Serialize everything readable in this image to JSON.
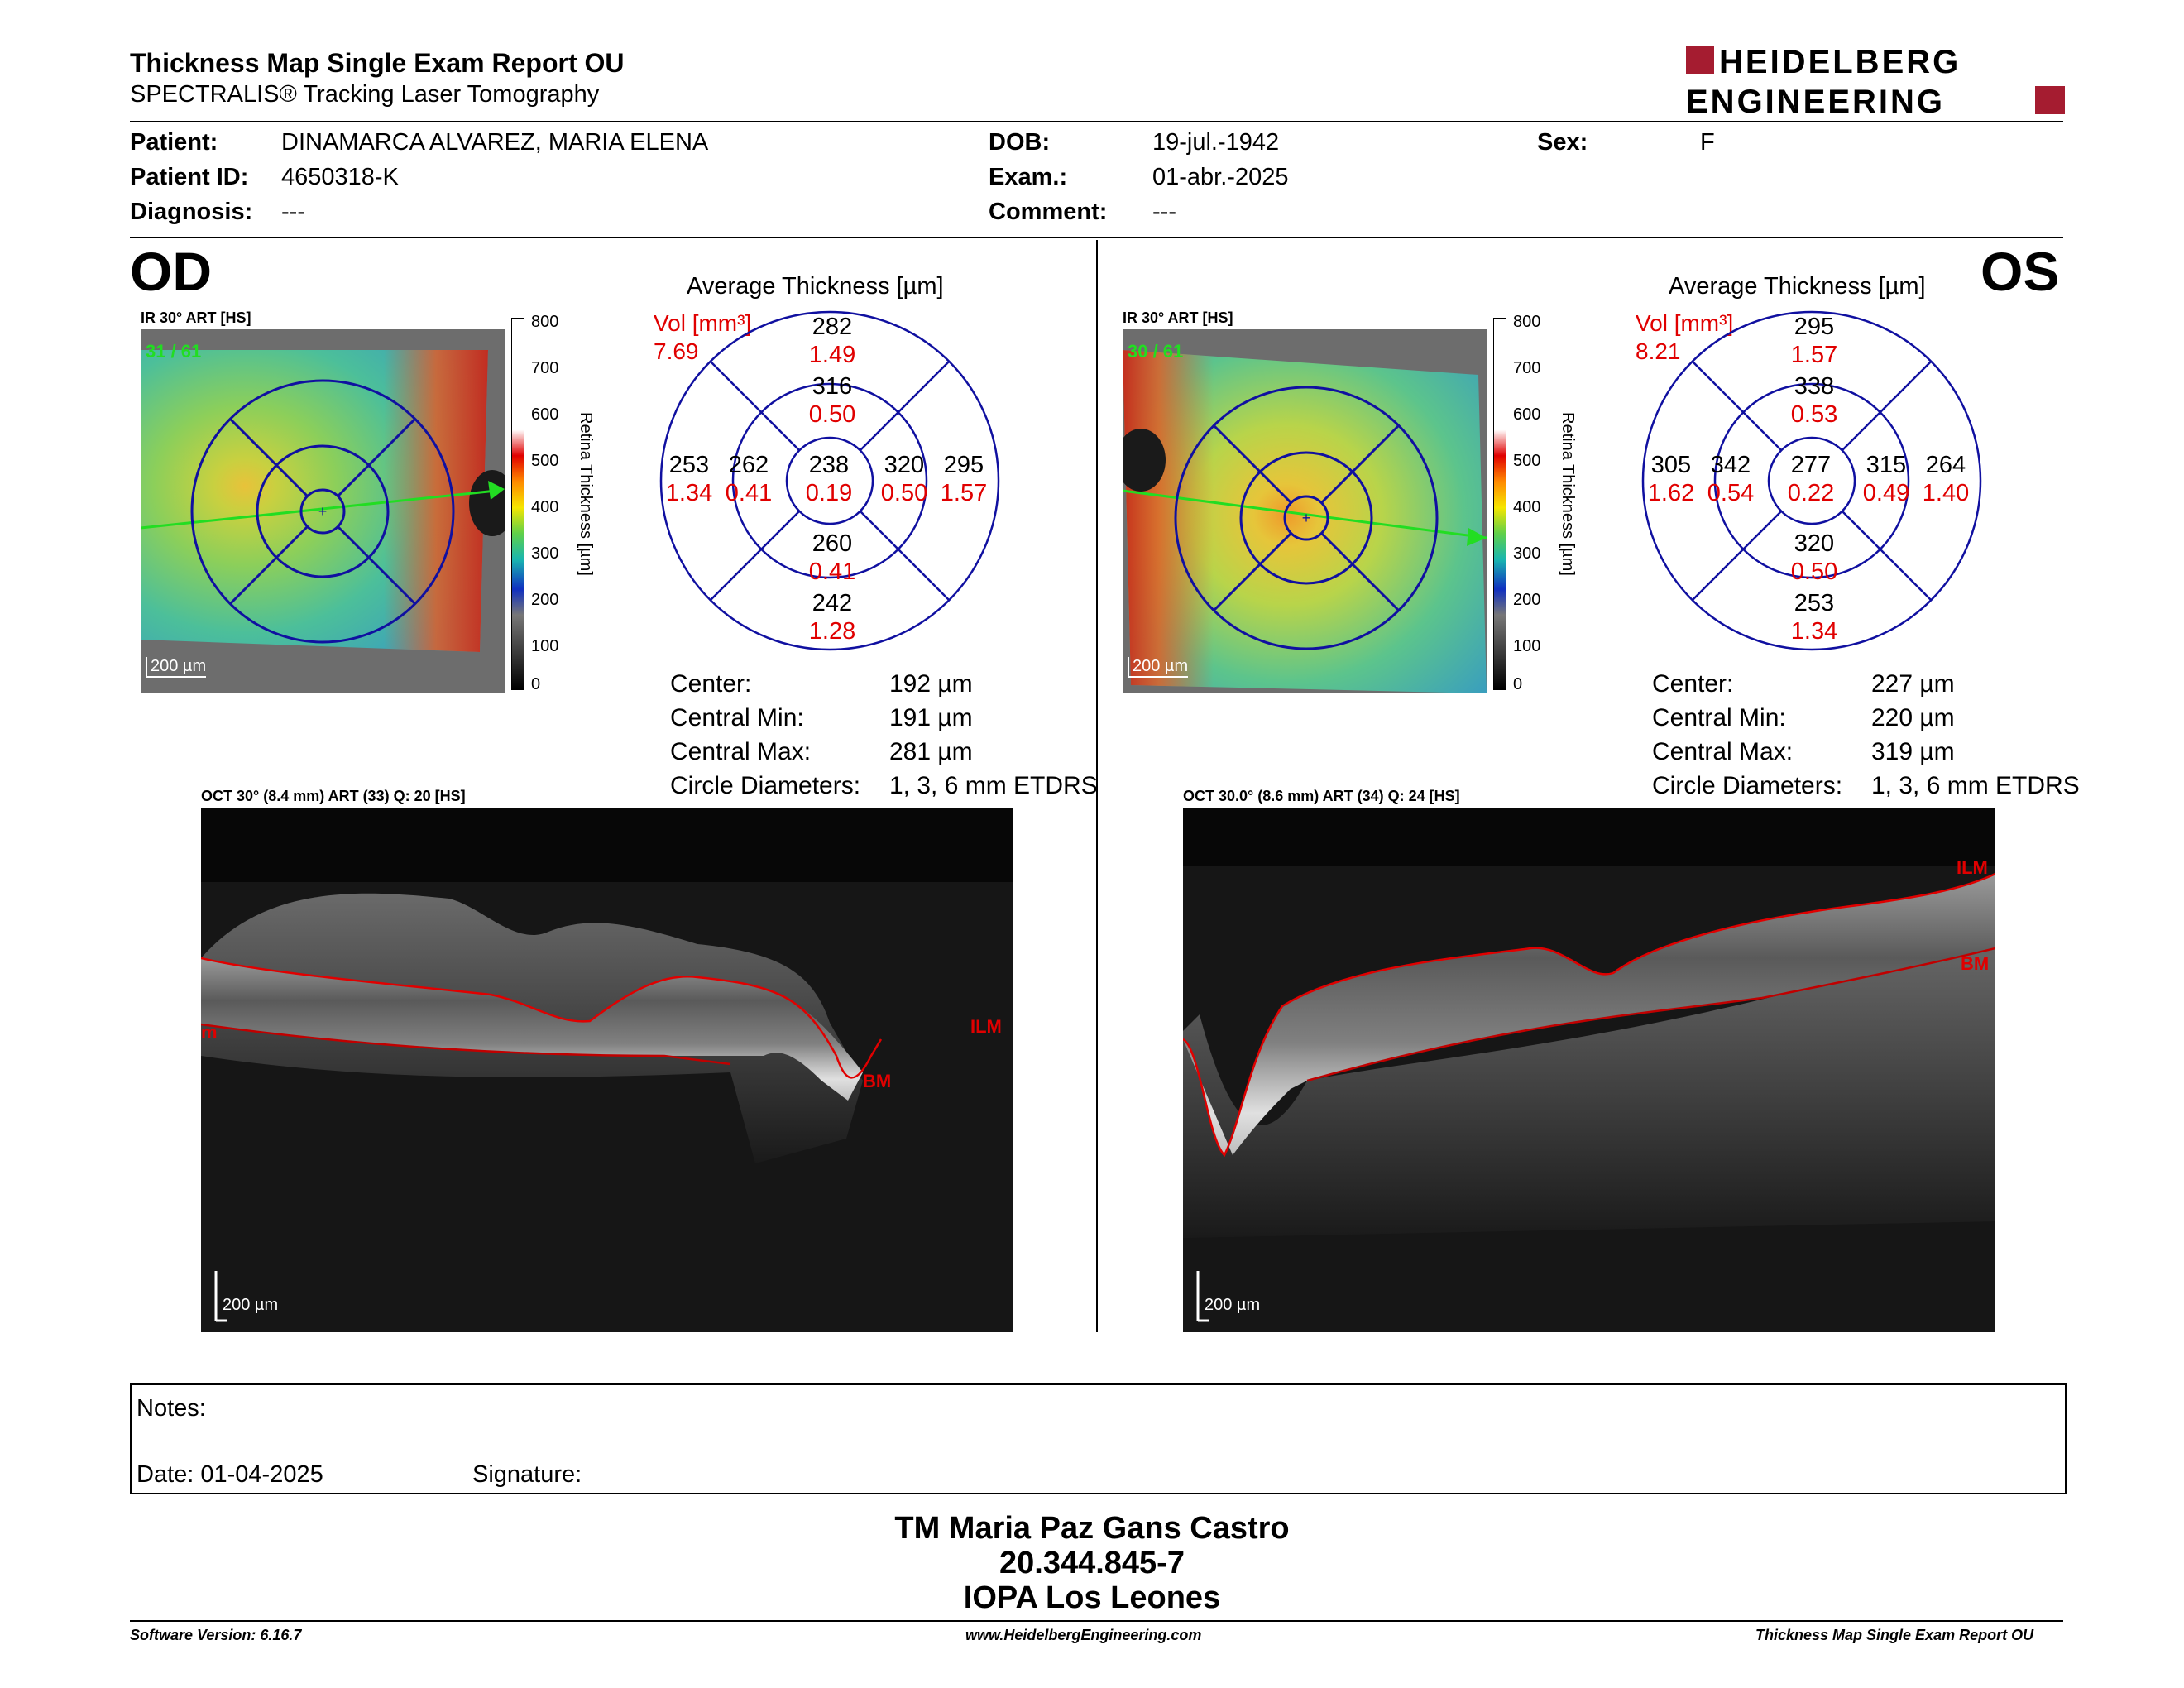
{
  "header": {
    "title": "Thickness Map Single Exam Report OU",
    "subtitle": "SPECTRALIS® Tracking Laser Tomography",
    "logo_line1": "HEIDELBERG",
    "logo_line2": "ENGINEERING",
    "logo_color": "#a51c30"
  },
  "patient": {
    "patient_label": "Patient:",
    "patient_value": "DINAMARCA ALVAREZ, MARIA ELENA",
    "id_label": "Patient ID:",
    "id_value": "4650318-K",
    "diag_label": "Diagnosis:",
    "diag_value": "---",
    "dob_label": "DOB:",
    "dob_value": "19-jul.-1942",
    "exam_label": "Exam.:",
    "exam_value": "01-abr.-2025",
    "comment_label": "Comment:",
    "comment_value": "---",
    "sex_label": "Sex:",
    "sex_value": "F"
  },
  "od": {
    "eye": "OD",
    "ir_label": "IR 30° ART [HS]",
    "frames": "31 / 61",
    "scale": "200 µm",
    "avg_title": "Average Thickness [µm]",
    "vol_label": "Vol [mm³]",
    "vol_total": "7.69",
    "sectors": {
      "outer_sup": {
        "t": "282",
        "v": "1.49"
      },
      "inner_sup": {
        "t": "316",
        "v": "0.50"
      },
      "outer_temp": {
        "t": "253",
        "v": "1.34"
      },
      "inner_temp": {
        "t": "262",
        "v": "0.41"
      },
      "center": {
        "t": "238",
        "v": "0.19"
      },
      "inner_nas": {
        "t": "320",
        "v": "0.50"
      },
      "outer_nas": {
        "t": "295",
        "v": "1.57"
      },
      "inner_inf": {
        "t": "260",
        "v": "0.41"
      },
      "outer_inf": {
        "t": "242",
        "v": "1.28"
      }
    },
    "stats": {
      "center_k": "Center:",
      "center_v": "192 µm",
      "min_k": "Central Min:",
      "min_v": "191 µm",
      "max_k": "Central Max:",
      "max_v": "281 µm",
      "diam_k": "Circle Diameters:",
      "diam_v": "1, 3, 6 mm ETDRS"
    },
    "oct_label": "OCT 30° (8.4 mm) ART (33) Q: 20 [HS]",
    "ilm": "ILM",
    "bm": "BM",
    "left_edge": "m",
    "oct_scale": "200 µm"
  },
  "os": {
    "eye": "OS",
    "ir_label": "IR 30° ART [HS]",
    "frames": "30 / 61",
    "scale": "200 µm",
    "avg_title": "Average Thickness [µm]",
    "vol_label": "Vol [mm³]",
    "vol_total": "8.21",
    "sectors": {
      "outer_sup": {
        "t": "295",
        "v": "1.57"
      },
      "inner_sup": {
        "t": "338",
        "v": "0.53"
      },
      "outer_temp": {
        "t": "305",
        "v": "1.62"
      },
      "inner_temp": {
        "t": "342",
        "v": "0.54"
      },
      "center": {
        "t": "277",
        "v": "0.22"
      },
      "inner_nas": {
        "t": "315",
        "v": "0.49"
      },
      "outer_nas": {
        "t": "264",
        "v": "1.40"
      },
      "inner_inf": {
        "t": "320",
        "v": "0.50"
      },
      "outer_inf": {
        "t": "253",
        "v": "1.34"
      }
    },
    "stats": {
      "center_k": "Center:",
      "center_v": "227 µm",
      "min_k": "Central Min:",
      "min_v": "220 µm",
      "max_k": "Central Max:",
      "max_v": "319 µm",
      "diam_k": "Circle Diameters:",
      "diam_v": "1, 3, 6 mm ETDRS"
    },
    "oct_label": "OCT 30.0° (8.6 mm) ART (34) Q: 24 [HS]",
    "ilm": "ILM",
    "bm": "BM",
    "oct_scale": "200 µm"
  },
  "colorbar": {
    "ticks": [
      "800",
      "700",
      "600",
      "500",
      "400",
      "300",
      "200",
      "100",
      "0"
    ],
    "title": "Retina Thickness [µm]"
  },
  "notes": {
    "label": "Notes:",
    "date": "Date: 01-04-2025",
    "signature": "Signature:"
  },
  "footer": {
    "name": "TM Maria Paz Gans Castro",
    "rut": "20.344.845-7",
    "org": "IOPA Los Leones",
    "software": "Software Version: 6.16.7",
    "website": "www.HeidelbergEngineering.com",
    "report": "Thickness Map Single Exam Report OU"
  }
}
